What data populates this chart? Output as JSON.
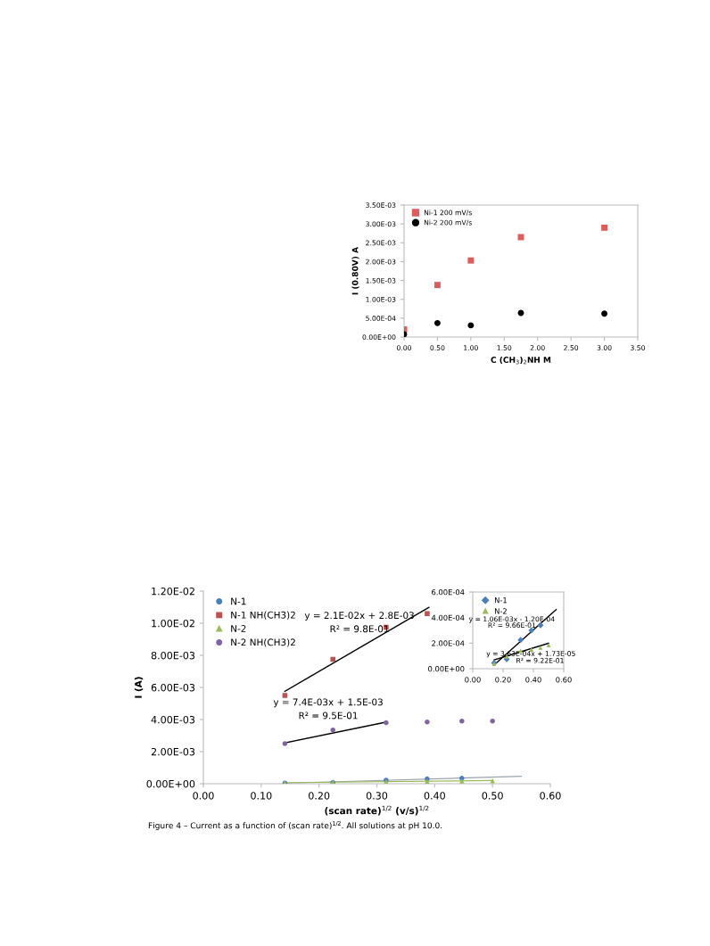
{
  "chart_data": [
    {
      "type": "scatter",
      "xlabel": "C (CH$_{3}$)$_{2}$NH M",
      "ylabel": "I (0.80V) A",
      "x": [
        0.0,
        0.5,
        1.0,
        1.75,
        3.0
      ],
      "series": [
        {
          "name": "Ni-1 200 mV/s",
          "color": "#e05c5c",
          "marker": "square",
          "values": [
            0.0002,
            0.00138,
            0.00203,
            0.00265,
            0.0029
          ]
        },
        {
          "name": "Ni-2 200 mV/s",
          "color": "#000000",
          "marker": "circle",
          "values": [
            7e-05,
            0.00037,
            0.00031,
            0.00064,
            0.00062
          ]
        }
      ],
      "xlim": [
        0,
        3.5
      ],
      "xticks": [
        {
          "value": 0,
          "label": "0.00"
        },
        {
          "value": 0.5,
          "label": "0.50"
        },
        {
          "value": 1,
          "label": "1.00"
        },
        {
          "value": 1.5,
          "label": "1.50"
        },
        {
          "value": 2,
          "label": "2.00"
        },
        {
          "value": 2.5,
          "label": "2.50"
        },
        {
          "value": 3,
          "label": "3.00"
        },
        {
          "value": 3.5,
          "label": "3.50"
        }
      ],
      "ylim": [
        0,
        0.0035
      ],
      "yticks": [
        {
          "value": 0,
          "label": "0.00E+00"
        },
        {
          "value": 0.0005,
          "label": "5.00E-04"
        },
        {
          "value": 0.001,
          "label": "1.00E-03"
        },
        {
          "value": 0.0015,
          "label": "1.50E-03"
        },
        {
          "value": 0.002,
          "label": "2.00E-03"
        },
        {
          "value": 0.0025,
          "label": "2.50E-03"
        },
        {
          "value": 0.003,
          "label": "3.00E-03"
        },
        {
          "value": 0.0035,
          "label": "3.50E-03"
        }
      ],
      "legend": "top left",
      "grid": false
    },
    {
      "type": "scatter",
      "xlabel": "(scan rate)$^{1/2}$ (v/s)$^{1/2}$",
      "ylabel": "I (A)",
      "x": [
        0.141,
        0.224,
        0.316,
        0.387,
        0.447,
        0.5
      ],
      "series": [
        {
          "name": "N-1",
          "color": "#4a7ebb",
          "marker": "circle",
          "values": [
            4.5e-05,
            7.5e-05,
            0.000225,
            0.0003,
            0.00034,
            null
          ]
        },
        {
          "name": "N-1 NH(CH3)2",
          "color": "#c0504d",
          "marker": "square",
          "values": [
            0.0055,
            0.00775,
            0.00975,
            0.0106,
            null,
            null
          ]
        },
        {
          "name": "N-2",
          "color": "#9bbb59",
          "marker": "triangle",
          "values": [
            4e-05,
            9.5e-05,
            0.00014,
            0.00015,
            0.000165,
            0.000185
          ]
        },
        {
          "name": "N-2 NH(CH3)2",
          "color": "#8064a2",
          "marker": "circle",
          "values": [
            0.0025,
            0.00335,
            0.0038,
            0.00385,
            0.0039,
            0.0039
          ]
        },
        {
          "type": "line",
          "color": "#000000",
          "x": [
            0.141,
            0.39
          ],
          "values": [
            0.00576,
            0.01099
          ]
        },
        {
          "type": "line",
          "color": "#000000",
          "x": [
            0.141,
            0.316
          ],
          "values": [
            0.00254,
            0.00384
          ]
        },
        {
          "type": "line",
          "color": "#9aa4ad",
          "x": [
            0.141,
            0.55
          ],
          "values": [
            3e-05,
            0.000463
          ]
        },
        {
          "type": "line",
          "color": "#9bbb59",
          "x": [
            0.141,
            0.5
          ],
          "values": [
            6.8e-05,
            0.000199
          ]
        }
      ],
      "xlim": [
        0,
        0.6
      ],
      "xticks": [
        {
          "value": 0,
          "label": "0.00"
        },
        {
          "value": 0.1,
          "label": "0.10"
        },
        {
          "value": 0.2,
          "label": "0.20"
        },
        {
          "value": 0.3,
          "label": "0.30"
        },
        {
          "value": 0.4,
          "label": "0.40"
        },
        {
          "value": 0.5,
          "label": "0.50"
        },
        {
          "value": 0.6,
          "label": "0.60"
        }
      ],
      "ylim": [
        0,
        0.012
      ],
      "yticks": [
        {
          "value": 0,
          "label": "0.00E+00"
        },
        {
          "value": 0.002,
          "label": "2.00E-03"
        },
        {
          "value": 0.004,
          "label": "4.00E-03"
        },
        {
          "value": 0.006,
          "label": "6.00E-03"
        },
        {
          "value": 0.008,
          "label": "8.00E-03"
        },
        {
          "value": 0.01,
          "label": "1.00E-02"
        },
        {
          "value": 0.012,
          "label": "1.20E-02"
        }
      ],
      "legend": "top left",
      "grid": false,
      "annotations": [
        "y = 2.1E-02x + 2.8E-03",
        "R² = 9.8E-01",
        "y = 7.4E-03x + 1.5E-03",
        "R² = 9.5E-01",
        "Figure 4 – Current as a function of (scan rate)$^{1/2}$. All solutions at pH 10.0."
      ]
    },
    {
      "type": "scatter",
      "x": [
        0.141,
        0.224,
        0.316,
        0.387,
        0.447,
        0.5
      ],
      "series": [
        {
          "name": "N-1",
          "color": "#4a7ebb",
          "marker": "diamond",
          "values": [
            4.5e-05,
            7.5e-05,
            0.000225,
            0.0003,
            0.00034,
            null
          ]
        },
        {
          "name": "N-2",
          "color": "#9bbb59",
          "marker": "triangle",
          "values": [
            4e-05,
            9.5e-05,
            0.00014,
            0.00015,
            0.000165,
            0.000185
          ]
        },
        {
          "type": "line",
          "color": "#000000",
          "x": [
            0.141,
            0.55
          ],
          "values": [
            3e-05,
            0.000463
          ]
        },
        {
          "type": "line",
          "color": "#000000",
          "x": [
            0.141,
            0.5
          ],
          "values": [
            6.8e-05,
            0.000199
          ]
        }
      ],
      "xlim": [
        0,
        0.6
      ],
      "xticks": [
        {
          "value": 0,
          "label": "0.00"
        },
        {
          "value": 0.2,
          "label": "0.20"
        },
        {
          "value": 0.4,
          "label": "0.40"
        },
        {
          "value": 0.6,
          "label": "0.60"
        }
      ],
      "ylim": [
        0,
        0.0006
      ],
      "yticks": [
        {
          "value": 0,
          "label": "0.00E+00"
        },
        {
          "value": 0.0002,
          "label": "2.00E-04"
        },
        {
          "value": 0.0004,
          "label": "4.00E-04"
        },
        {
          "value": 0.0006,
          "label": "6.00E-04"
        }
      ],
      "legend": "top left",
      "grid": false,
      "annotations": [
        "y = 1.06E-03x - 1.20E-04",
        "R² = 9.66E-01",
        "y = 3.63E-04x + 1.73E-05",
        "R² = 9.22E-01"
      ]
    }
  ]
}
